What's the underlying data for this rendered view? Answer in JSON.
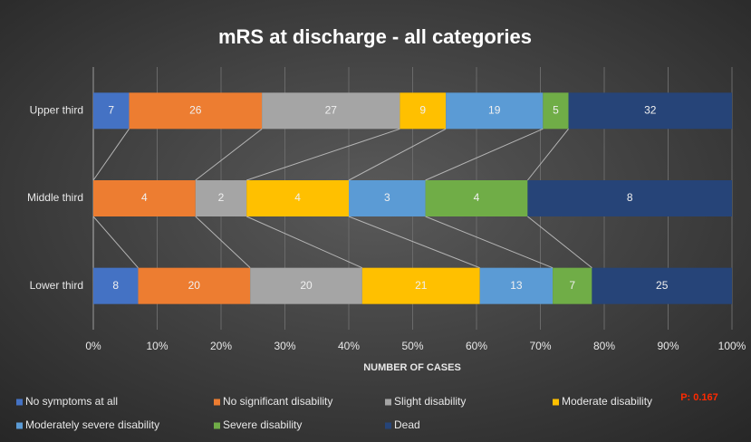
{
  "chart_data": {
    "type": "bar",
    "orientation": "horizontal",
    "stacked": "percent",
    "title": "mRS at discharge - all categories",
    "x_label": "NUMBER OF CASES",
    "annotation": "P: 0.167",
    "categories": [
      "Upper third",
      "Middle third",
      "Lower third"
    ],
    "series": [
      {
        "name": "No symptoms at all",
        "color": "#4472c4",
        "values": [
          7,
          0,
          8
        ]
      },
      {
        "name": "No significant disability",
        "color": "#ed7d31",
        "values": [
          26,
          4,
          20
        ]
      },
      {
        "name": "Slight disability",
        "color": "#a5a5a5",
        "values": [
          27,
          2,
          20
        ]
      },
      {
        "name": "Moderate disability",
        "color": "#ffc000",
        "values": [
          9,
          4,
          21
        ]
      },
      {
        "name": "Moderately severe disability",
        "color": "#5b9bd5",
        "values": [
          19,
          3,
          13
        ]
      },
      {
        "name": "Severe disability",
        "color": "#70ad47",
        "values": [
          5,
          4,
          7
        ]
      },
      {
        "name": "Dead",
        "color": "#264478",
        "values": [
          32,
          8,
          25
        ]
      }
    ],
    "xlim": [
      0,
      100
    ],
    "xticks": [
      {
        "value": 0,
        "label": "0%"
      },
      {
        "value": 10,
        "label": "10%"
      },
      {
        "value": 20,
        "label": "20%"
      },
      {
        "value": 30,
        "label": "30%"
      },
      {
        "value": 40,
        "label": "40%"
      },
      {
        "value": 50,
        "label": "50%"
      },
      {
        "value": 60,
        "label": "60%"
      },
      {
        "value": 70,
        "label": "70%"
      },
      {
        "value": 80,
        "label": "80%"
      },
      {
        "value": 90,
        "label": "90%"
      },
      {
        "value": 100,
        "label": "100%"
      }
    ],
    "grid": true,
    "series_lines": true,
    "legend": "bottom"
  }
}
